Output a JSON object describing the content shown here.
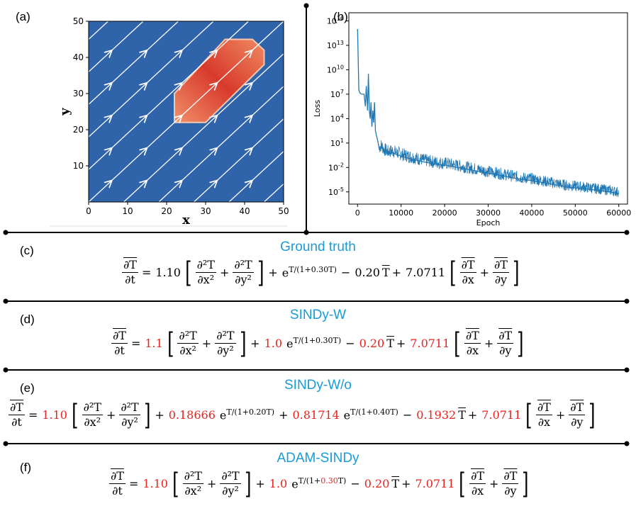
{
  "panels": {
    "a": "(a)",
    "b": "(b)",
    "c": "(c)",
    "d": "(d)",
    "e": "(e)",
    "f": "(f)"
  },
  "chart_data": [
    {
      "type": "heatmap",
      "xlabel": "x",
      "ylabel": "y",
      "xlim": [
        0,
        50
      ],
      "ylim": [
        0,
        50
      ],
      "xticks": [
        0,
        10,
        20,
        30,
        40,
        50
      ],
      "yticks": [
        10,
        20,
        30,
        40,
        50
      ],
      "background_color": "#2f63aa",
      "source_region": [
        [
          22,
          22
        ],
        [
          22,
          30
        ],
        [
          35,
          45
        ],
        [
          42,
          45
        ],
        [
          45,
          42
        ],
        [
          45,
          38
        ],
        [
          30,
          22
        ]
      ],
      "source_color": "#e2603f",
      "velocity_direction_deg": 45
    },
    {
      "type": "line",
      "xlabel": "Epoch",
      "ylabel": "Loss",
      "xlim": [
        -2000,
        62000
      ],
      "xticks": [
        0,
        10000,
        20000,
        30000,
        40000,
        50000,
        60000
      ],
      "ylog": true,
      "yticks": [
        -5,
        -2,
        1,
        4,
        7,
        10,
        13,
        16
      ],
      "series_color": "#1f77b4",
      "series": [
        {
          "x": [
            0,
            300,
            600,
            1000,
            1500,
            1800,
            2000,
            2300,
            2500,
            2700,
            2900,
            3100,
            3300,
            3500,
            3700,
            3900,
            4100,
            4300,
            4500,
            4800,
            5000,
            5500,
            6000,
            7000,
            8000,
            10000,
            12000,
            15000,
            18000,
            20000,
            22000,
            25000,
            28000,
            30000,
            32000,
            35000,
            38000,
            40000,
            42000,
            45000,
            48000,
            50000,
            52000,
            55000,
            58000,
            60000
          ],
          "y": [
            15,
            7.5,
            7.1,
            7.0,
            7.0,
            5.5,
            8.0,
            5.0,
            9.5,
            5.0,
            4.0,
            6.0,
            3.0,
            5.0,
            3.5,
            6.0,
            2.5,
            2.0,
            1.6,
            0.8,
            0.2,
            0.5,
            0.0,
            -0.3,
            -0.2,
            -0.6,
            -0.9,
            -1.3,
            -1.6,
            -1.7,
            -1.9,
            -2.2,
            -2.5,
            -2.7,
            -2.9,
            -3.2,
            -3.5,
            -3.6,
            -3.8,
            -4.1,
            -4.4,
            -4.5,
            -4.6,
            -4.8,
            -5.0,
            -5.2
          ]
        }
      ]
    }
  ],
  "sections": {
    "c": {
      "title": "Ground truth",
      "c1": "1.10",
      "c2": "",
      "c3": "0.30",
      "c4": "0.20",
      "c5": "7.0711"
    },
    "d": {
      "title": "SINDy-W",
      "c1": "1.1",
      "c2": "1.0",
      "c3": "0.30",
      "c4": "0.20",
      "c5": "7.0711"
    },
    "e": {
      "title": "SINDy-W/o",
      "c1": "1.10",
      "c2a": "0.18666",
      "c3a": "0.20",
      "c2b": "0.81714",
      "c3b": "0.40",
      "c4": "0.1932",
      "c5": "7.0711"
    },
    "f": {
      "title": "ADAM-SINDy",
      "c1": "1.10",
      "c2": "1.0",
      "c3": "0.30",
      "c4": "0.20",
      "c5": "7.0711"
    }
  },
  "symbols": {
    "dTdt_num": "∂T",
    "dTdt_den": "∂t",
    "d2x_num": "∂²T",
    "d2x_den": "∂x²",
    "d2y_num": "∂²T",
    "d2y_den": "∂y²",
    "dx_num": "∂T",
    "dx_den": "∂x",
    "dy_num": "∂T",
    "dy_den": "∂y",
    "equals": "=",
    "plus": "+",
    "minus": "−",
    "e": "e",
    "T": "T",
    "exp_pre": "T/(1+",
    "exp_post": "T)"
  }
}
